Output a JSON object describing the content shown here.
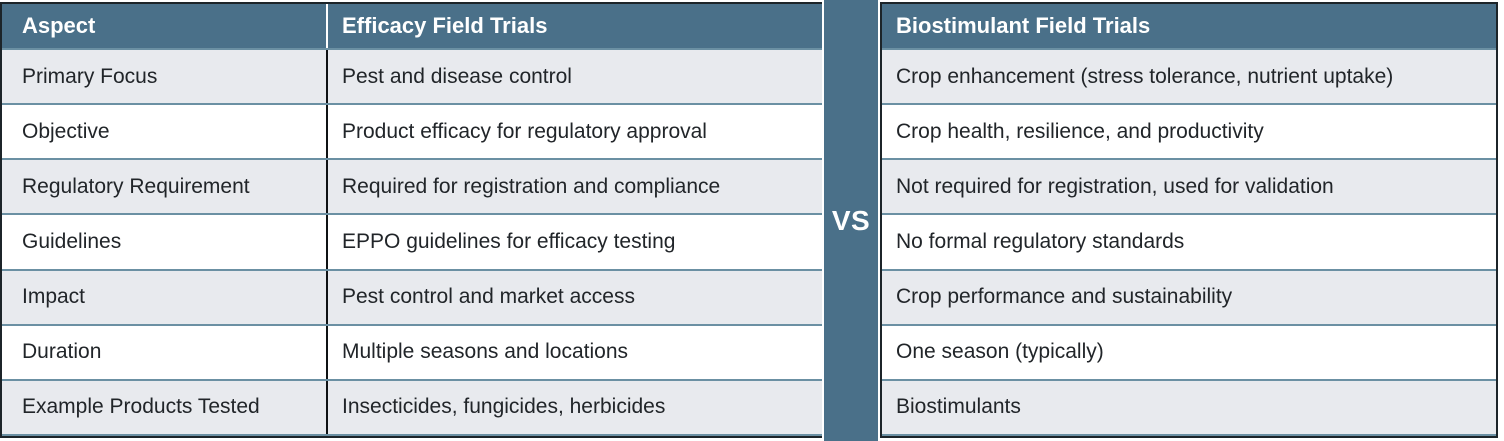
{
  "vs_label": "VS",
  "colors": {
    "header_blue": "#4a7089",
    "row_gray": "#e8eaee",
    "row_white": "#ffffff",
    "separator_slate": "#6b90a3",
    "outer_border": "#1c2429",
    "column_divider": "#0f1214",
    "header_text": "#ffffff",
    "body_text": "#212529"
  },
  "chart_data": {
    "type": "table",
    "columns": [
      "Aspect",
      "Efficacy Field Trials",
      "Biostimulant Field Trials"
    ],
    "rows": [
      [
        "Primary Focus",
        "Pest and disease control",
        "Crop enhancement (stress tolerance, nutrient uptake)"
      ],
      [
        "Objective",
        "Product efficacy for regulatory approval",
        "Crop health, resilience, and productivity"
      ],
      [
        "Regulatory Requirement",
        "Required for registration and compliance",
        "Not required for registration, used for validation"
      ],
      [
        "Guidelines",
        "EPPO guidelines for efficacy testing",
        "No formal regulatory standards"
      ],
      [
        "Impact",
        "Pest control and market access",
        "Crop performance and sustainability"
      ],
      [
        "Duration",
        "Multiple seasons and locations",
        "One season (typically)"
      ],
      [
        "Example Products Tested",
        "Insecticides, fungicides, herbicides",
        "Biostimulants"
      ]
    ]
  }
}
